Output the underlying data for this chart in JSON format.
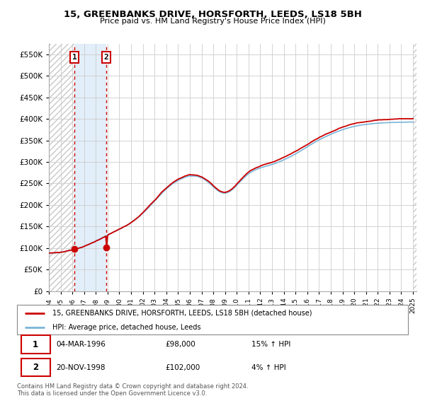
{
  "title1": "15, GREENBANKS DRIVE, HORSFORTH, LEEDS, LS18 5BH",
  "title2": "Price paid vs. HM Land Registry's House Price Index (HPI)",
  "ytick_values": [
    0,
    50000,
    100000,
    150000,
    200000,
    250000,
    300000,
    350000,
    400000,
    450000,
    500000,
    550000
  ],
  "ylim": [
    0,
    575000
  ],
  "x_start_year": 1994,
  "x_end_year": 2025,
  "purchase1_year": 1996.17,
  "purchase1_price": 98000,
  "purchase1_label": "1",
  "purchase1_date": "04-MAR-1996",
  "purchase1_hpi_pct": "15%",
  "purchase2_year": 1998.9,
  "purchase2_price": 102000,
  "purchase2_label": "2",
  "purchase2_date": "20-NOV-1998",
  "purchase2_hpi_pct": "4%",
  "legend_line1": "15, GREENBANKS DRIVE, HORSFORTH, LEEDS, LS18 5BH (detached house)",
  "legend_line2": "HPI: Average price, detached house, Leeds",
  "footnote": "Contains HM Land Registry data © Crown copyright and database right 2024.\nThis data is licensed under the Open Government Licence v3.0.",
  "hpi_color": "#7ab4d8",
  "price_color": "#cc0000",
  "dashed_color": "#cc0000",
  "grid_color": "#cccccc",
  "hpi_fill_color": "#d6e8f7",
  "hatch_color": "#c8c8c8"
}
